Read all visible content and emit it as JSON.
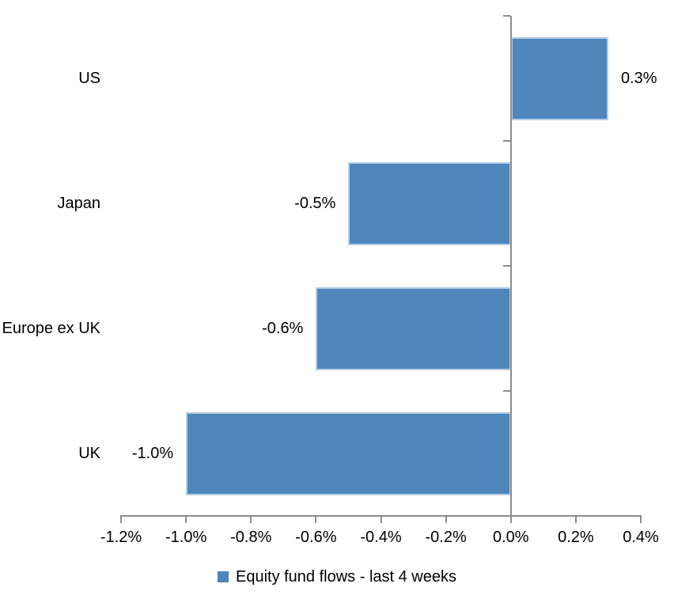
{
  "chart_data": {
    "type": "bar",
    "orientation": "horizontal",
    "title": "",
    "categories": [
      "US",
      "Japan",
      "Europe ex UK",
      "UK"
    ],
    "values": [
      0.3,
      -0.5,
      -0.6,
      -1.0
    ],
    "data_labels": [
      "0.3%",
      "-0.5%",
      "-0.6%",
      "-1.0%"
    ],
    "x_ticks": [
      "-1.2%",
      "-1.0%",
      "-0.8%",
      "-0.6%",
      "-0.4%",
      "-0.2%",
      "0.0%",
      "0.2%",
      "0.4%"
    ],
    "x_tick_values": [
      -1.2,
      -1.0,
      -0.8,
      -0.6,
      -0.4,
      -0.2,
      0.0,
      0.2,
      0.4
    ],
    "xlim": [
      -1.2,
      0.4
    ],
    "grid": false,
    "legend_position": "bottom-center",
    "legend": [
      {
        "label": "Equity fund flows - last 4 weeks",
        "color": "#4E86BC"
      }
    ],
    "bar_color": "#4E86BC",
    "bar_border_color": "#B7CCE4",
    "axis_color": "#8C8C8C",
    "text_color": "#000000",
    "background_color": "#FFFFFF"
  }
}
